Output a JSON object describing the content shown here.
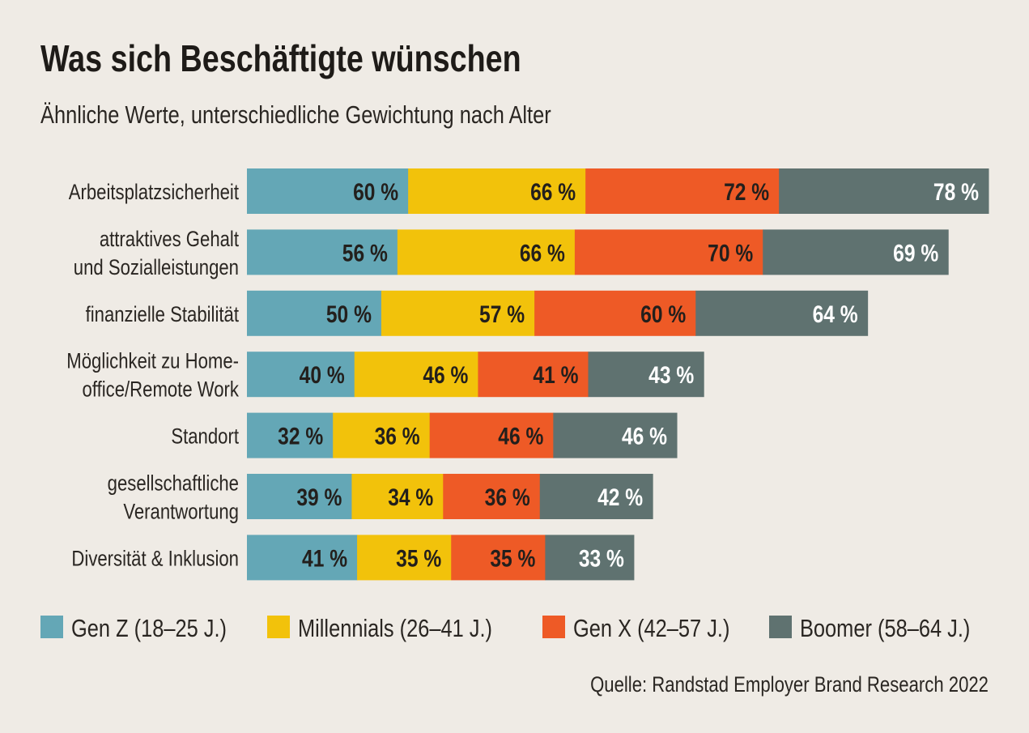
{
  "chart_data": {
    "type": "bar",
    "orientation": "horizontal",
    "stacked": true,
    "title": "Was sich Beschäftigte wünschen",
    "subtitle": "Ähnliche Werte, unterschiedliche Gewichtung nach Alter",
    "source": "Quelle: Randstad Employer Brand Research 2022",
    "categories": [
      [
        "Arbeitsplatzsicherheit"
      ],
      [
        "attraktives Gehalt",
        "und Sozialleistungen"
      ],
      [
        "finanzielle Stabilität"
      ],
      [
        "Möglichkeit zu Home-",
        "office/Remote Work"
      ],
      [
        "Standort"
      ],
      [
        "gesellschaftliche",
        "Verantwortung"
      ],
      [
        "Diversität & Inklusion"
      ]
    ],
    "series": [
      {
        "name": "Gen Z (18–25 J.)",
        "color": "#64a7b6",
        "label_color": "#231f1c",
        "values": [
          60,
          56,
          50,
          40,
          32,
          39,
          41
        ]
      },
      {
        "name": "Millennials (26–41 J.)",
        "color": "#f2c20b",
        "label_color": "#231f1c",
        "values": [
          66,
          66,
          57,
          46,
          36,
          34,
          35
        ]
      },
      {
        "name": "Gen X (42–57 J.)",
        "color": "#ee5a26",
        "label_color": "#231f1c",
        "values": [
          72,
          70,
          60,
          41,
          46,
          36,
          35
        ]
      },
      {
        "name": "Boomer (58–64 J.)",
        "color": "#5f7270",
        "label_color": "#ffffff",
        "values": [
          78,
          69,
          64,
          43,
          46,
          42,
          33
        ]
      }
    ],
    "value_suffix": " %",
    "legend_position": "bottom",
    "grid": false,
    "background": "#efebe5"
  }
}
